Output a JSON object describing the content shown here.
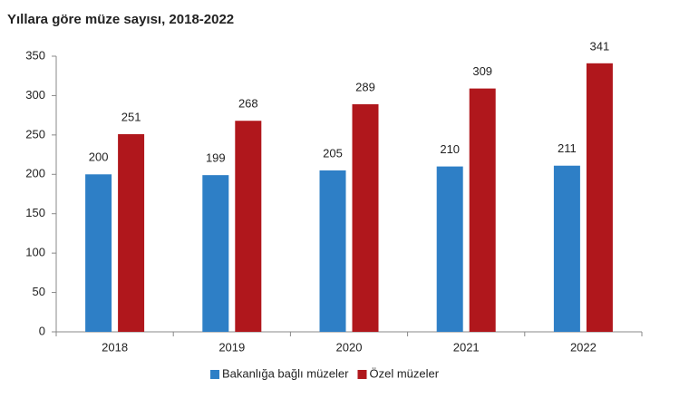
{
  "chart_data": {
    "type": "bar",
    "title": "Yıllara göre müze sayısı, 2018-2022",
    "categories": [
      "2018",
      "2019",
      "2020",
      "2021",
      "2022"
    ],
    "series": [
      {
        "name": "Bakanlığa bağlı müzeler",
        "color": "#2e7fc6",
        "values": [
          200,
          199,
          205,
          210,
          211
        ]
      },
      {
        "name": "Özel müzeler",
        "color": "#b0171c",
        "values": [
          251,
          268,
          289,
          309,
          341
        ]
      }
    ],
    "ylim": [
      0,
      350
    ],
    "yticks": [
      0,
      50,
      100,
      150,
      200,
      250,
      300,
      350
    ],
    "grid": false,
    "legend": "bottom"
  }
}
